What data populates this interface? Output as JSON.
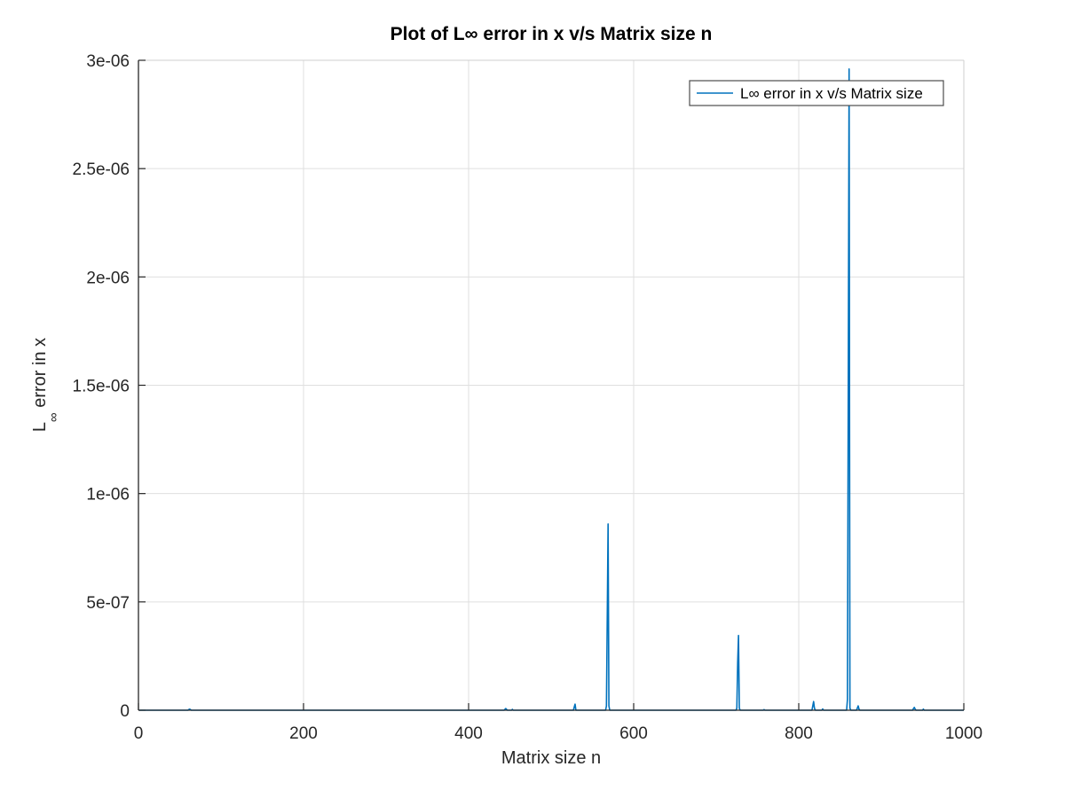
{
  "chart_data": {
    "type": "line",
    "title": "Plot of L∞ error in x v/s Matrix size n",
    "xlabel": "Matrix size n",
    "ylabel": {
      "main": "L",
      "subscript": "∞",
      "rest": " error in x"
    },
    "xlim": [
      0,
      1000
    ],
    "ylim": [
      0,
      3e-06
    ],
    "xticks": [
      0,
      200,
      400,
      600,
      800,
      1000
    ],
    "xtick_labels": [
      "0",
      "200",
      "400",
      "600",
      "800",
      "1000"
    ],
    "yticks": [
      0,
      5e-07,
      1e-06,
      1.5e-06,
      2e-06,
      2.5e-06,
      3e-06
    ],
    "ytick_labels": [
      "0",
      "5e-07",
      "1e-06",
      "1.5e-06",
      "2e-06",
      "2.5e-06",
      "3e-06"
    ],
    "grid": true,
    "legend_position": "top-right",
    "series": [
      {
        "name": "L∞ error in x v/s Matrix size",
        "color": "#0072bd",
        "x": [
          1,
          60,
          61,
          62,
          63,
          64,
          443,
          444,
          445,
          446,
          447,
          452,
          453,
          454,
          527,
          528,
          529,
          530,
          566,
          567,
          568,
          569,
          570,
          571,
          724,
          725,
          726,
          727,
          728,
          729,
          757,
          758,
          759,
          816,
          817,
          818,
          819,
          820,
          828,
          829,
          830,
          858,
          859,
          860,
          861,
          862,
          863,
          870,
          871,
          872,
          873,
          874,
          938,
          939,
          940,
          941,
          942,
          950,
          951,
          952,
          1000
        ],
        "y": [
          0,
          0,
          3e-09,
          5e-09,
          3e-09,
          0,
          0,
          4e-09,
          8e-09,
          4e-09,
          0,
          0,
          4e-09,
          0,
          0,
          1.5e-08,
          2.8e-08,
          0,
          0,
          2e-08,
          4.3e-07,
          8.6e-07,
          2e-08,
          0,
          0,
          1e-08,
          2.2e-07,
          3.45e-07,
          1e-08,
          0,
          0,
          3e-09,
          0,
          0,
          2e-08,
          4e-08,
          1e-08,
          0,
          0,
          6e-09,
          0,
          0,
          5e-08,
          1.5e-06,
          2.96e-06,
          1e-08,
          0,
          0,
          1e-08,
          2e-08,
          5e-09,
          0,
          0,
          8e-09,
          1.3e-08,
          5e-09,
          0,
          0,
          5e-09,
          0,
          0
        ]
      }
    ]
  }
}
